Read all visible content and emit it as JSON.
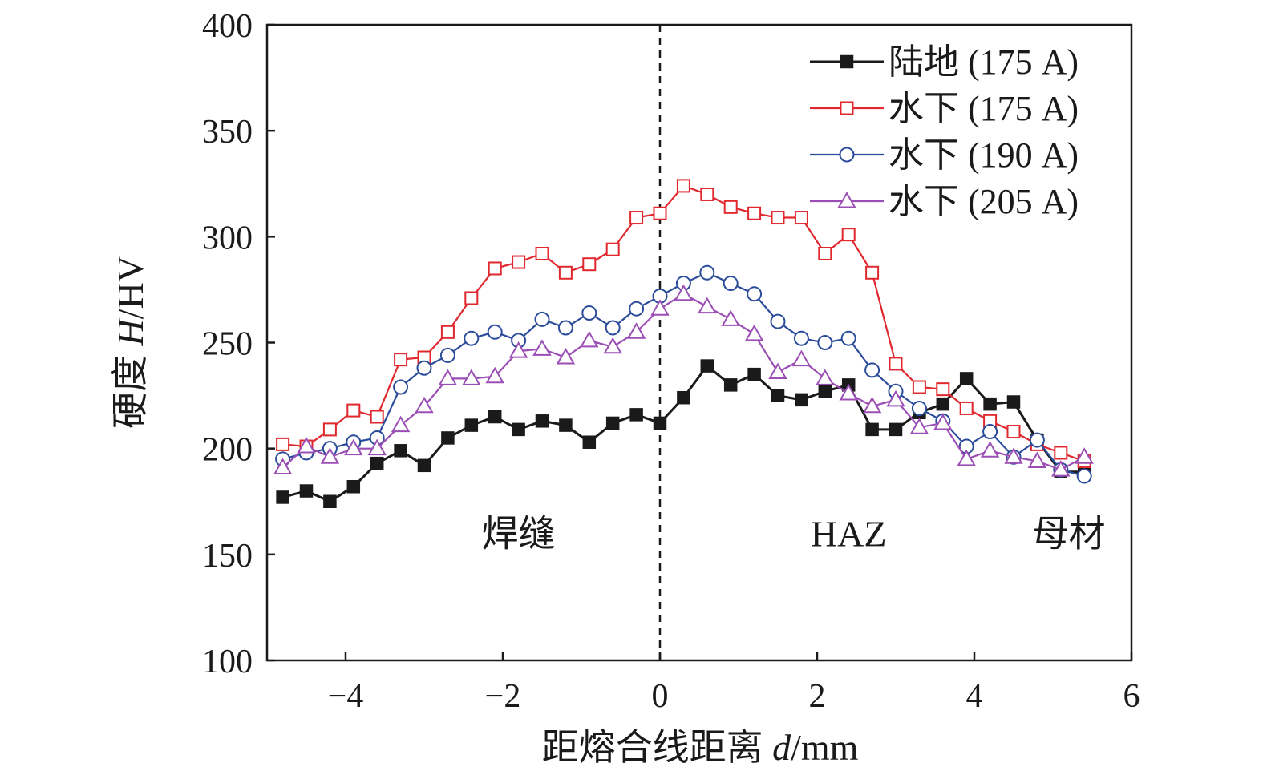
{
  "chart_data": {
    "type": "line",
    "xlabel_prefix": "距熔合线距离 ",
    "xlabel_var": "d",
    "xlabel_unit": "/mm",
    "ylabel_prefix": "硬度 ",
    "ylabel_var": "H",
    "ylabel_unit": "/HV",
    "xlim": [
      -5,
      6
    ],
    "ylim": [
      100,
      400
    ],
    "xticks": [
      -4,
      -2,
      0,
      2,
      4,
      6
    ],
    "xtick_labels": [
      "−4",
      "−2",
      "0",
      "2",
      "4",
      "6"
    ],
    "yticks": [
      100,
      150,
      200,
      250,
      300,
      350,
      400
    ],
    "ytick_labels": [
      "100",
      "150",
      "200",
      "250",
      "300",
      "350",
      "400"
    ],
    "fusion_line_x": 0,
    "legend_position": "top-right",
    "annotations": [
      {
        "text": "焊缝",
        "x": -1.8,
        "y": 160
      },
      {
        "text": "HAZ",
        "x": 2.4,
        "y": 160
      },
      {
        "text": "母材",
        "x": 5.2,
        "y": 160
      }
    ],
    "x": [
      -4.8,
      -4.5,
      -4.2,
      -3.9,
      -3.6,
      -3.3,
      -3.0,
      -2.7,
      -2.4,
      -2.1,
      -1.8,
      -1.5,
      -1.2,
      -0.9,
      -0.6,
      -0.3,
      0.0,
      0.3,
      0.6,
      0.9,
      1.2,
      1.5,
      1.8,
      2.1,
      2.4,
      2.7,
      3.0,
      3.3,
      3.6,
      3.9,
      4.2,
      4.5,
      4.8,
      5.1,
      5.4
    ],
    "series": [
      {
        "name": "陆地 (175 A)",
        "color": "#1a1a1a",
        "marker": "square-filled",
        "values": [
          177,
          180,
          175,
          182,
          193,
          199,
          192,
          205,
          211,
          215,
          209,
          213,
          211,
          203,
          212,
          216,
          212,
          224,
          239,
          230,
          235,
          225,
          223,
          227,
          230,
          209,
          209,
          217,
          221,
          233,
          221,
          222,
          204,
          189,
          189
        ]
      },
      {
        "name": "水下 (175 A)",
        "color": "#e0282e",
        "marker": "square-open",
        "values": [
          202,
          201,
          209,
          218,
          215,
          242,
          243,
          255,
          271,
          285,
          288,
          292,
          283,
          287,
          294,
          309,
          311,
          324,
          320,
          314,
          311,
          309,
          309,
          292,
          301,
          283,
          240,
          229,
          228,
          219,
          213,
          208,
          202,
          198,
          194
        ]
      },
      {
        "name": "水下 (190 A)",
        "color": "#2b4c9b",
        "marker": "circle-open",
        "values": [
          195,
          198,
          200,
          203,
          205,
          229,
          238,
          244,
          252,
          255,
          251,
          261,
          257,
          264,
          257,
          266,
          272,
          278,
          283,
          278,
          273,
          260,
          252,
          250,
          252,
          237,
          227,
          219,
          213,
          201,
          208,
          196,
          204,
          190,
          187
        ]
      },
      {
        "name": "水下 (205 A)",
        "color": "#9b4fb5",
        "marker": "triangle-open",
        "values": [
          191,
          201,
          196,
          200,
          200,
          211,
          220,
          233,
          233,
          234,
          246,
          247,
          243,
          251,
          248,
          255,
          266,
          273,
          267,
          261,
          254,
          236,
          242,
          233,
          226,
          220,
          223,
          210,
          212,
          195,
          199,
          196,
          194,
          190,
          196
        ]
      }
    ]
  }
}
